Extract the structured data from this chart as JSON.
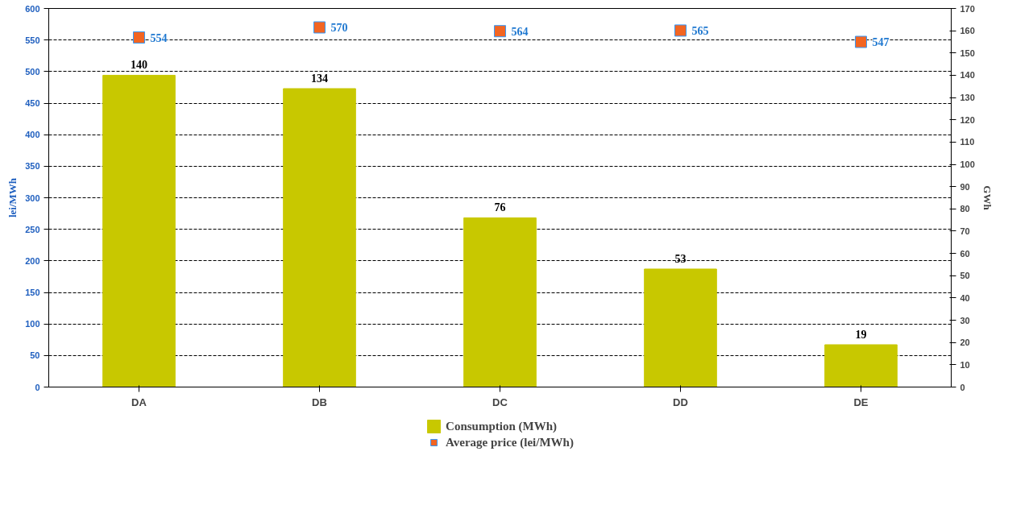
{
  "chart_data": {
    "type": "bar",
    "categories": [
      "DA",
      "DB",
      "DC",
      "DD",
      "DE"
    ],
    "series": [
      {
        "name": "Consumption (MWh)",
        "axis": "y2",
        "color": "#c8c800",
        "values": [
          140,
          134,
          76,
          53,
          19
        ]
      },
      {
        "name": "Average price (lei/MWh)",
        "type": "scatter",
        "axis": "y",
        "color": "#f26522",
        "marker": "square",
        "values": [
          554,
          570,
          564,
          565,
          547
        ]
      }
    ],
    "ylabel": "lei/MWh",
    "y2label": "GWh",
    "ylim": [
      0,
      600
    ],
    "yticks": [
      0,
      50,
      100,
      150,
      200,
      250,
      300,
      350,
      400,
      450,
      500,
      550,
      600
    ],
    "y2lim": [
      0,
      170
    ],
    "y2ticks": [
      0,
      10,
      20,
      30,
      40,
      50,
      60,
      70,
      80,
      90,
      100,
      110,
      120,
      130,
      140,
      150,
      160,
      170
    ],
    "grid": "y",
    "legend": "bottom",
    "data_labels": true
  }
}
